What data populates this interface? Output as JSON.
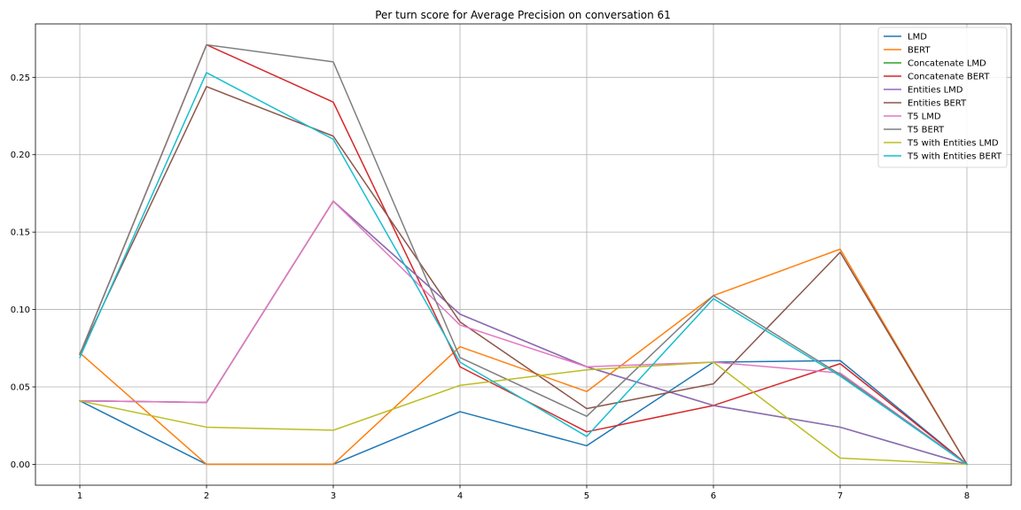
{
  "chart_data": {
    "type": "line",
    "title": "Per turn score for Average Precision on conversation 61",
    "xlabel": "",
    "ylabel": "",
    "x": [
      1,
      2,
      3,
      4,
      5,
      6,
      7,
      8
    ],
    "xlim": [
      0.65,
      8.35
    ],
    "ylim": [
      -0.0135,
      0.2845
    ],
    "xticks": [
      "1",
      "2",
      "3",
      "4",
      "5",
      "6",
      "7",
      "8"
    ],
    "yticks": [
      "0.00",
      "0.05",
      "0.10",
      "0.15",
      "0.20",
      "0.25"
    ],
    "grid": true,
    "legend_position": "top-right",
    "series": [
      {
        "name": "LMD",
        "color": "#1f77b4",
        "values": [
          0.041,
          0.0,
          0.0,
          0.034,
          0.012,
          0.066,
          0.067,
          0.0
        ]
      },
      {
        "name": "BERT",
        "color": "#ff7f0e",
        "values": [
          0.072,
          0.0,
          0.0,
          0.076,
          0.047,
          0.109,
          0.139,
          0.0
        ]
      },
      {
        "name": "Concatenate LMD",
        "color": "#2ca02c",
        "values": [
          0.041,
          0.04,
          0.17,
          0.097,
          0.063,
          0.038,
          0.024,
          0.0
        ]
      },
      {
        "name": "Concatenate BERT",
        "color": "#d62728",
        "values": [
          0.071,
          0.271,
          0.234,
          0.063,
          0.021,
          0.038,
          0.065,
          0.0
        ]
      },
      {
        "name": "Entities LMD",
        "color": "#9467bd",
        "values": [
          0.041,
          0.04,
          0.17,
          0.097,
          0.063,
          0.038,
          0.024,
          0.0
        ]
      },
      {
        "name": "Entities BERT",
        "color": "#8c564b",
        "values": [
          0.071,
          0.244,
          0.212,
          0.092,
          0.036,
          0.052,
          0.137,
          0.0
        ]
      },
      {
        "name": "T5 LMD",
        "color": "#e377c2",
        "values": [
          0.041,
          0.04,
          0.17,
          0.09,
          0.063,
          0.066,
          0.059,
          0.0
        ]
      },
      {
        "name": "T5 BERT",
        "color": "#7f7f7f",
        "values": [
          0.071,
          0.271,
          0.26,
          0.069,
          0.031,
          0.109,
          0.058,
          0.0
        ]
      },
      {
        "name": "T5 with Entities LMD",
        "color": "#bcbd22",
        "values": [
          0.041,
          0.024,
          0.022,
          0.051,
          0.061,
          0.066,
          0.004,
          0.0
        ]
      },
      {
        "name": "T5 with Entities BERT",
        "color": "#17becf",
        "values": [
          0.069,
          0.253,
          0.21,
          0.066,
          0.018,
          0.107,
          0.057,
          0.0
        ]
      }
    ]
  }
}
